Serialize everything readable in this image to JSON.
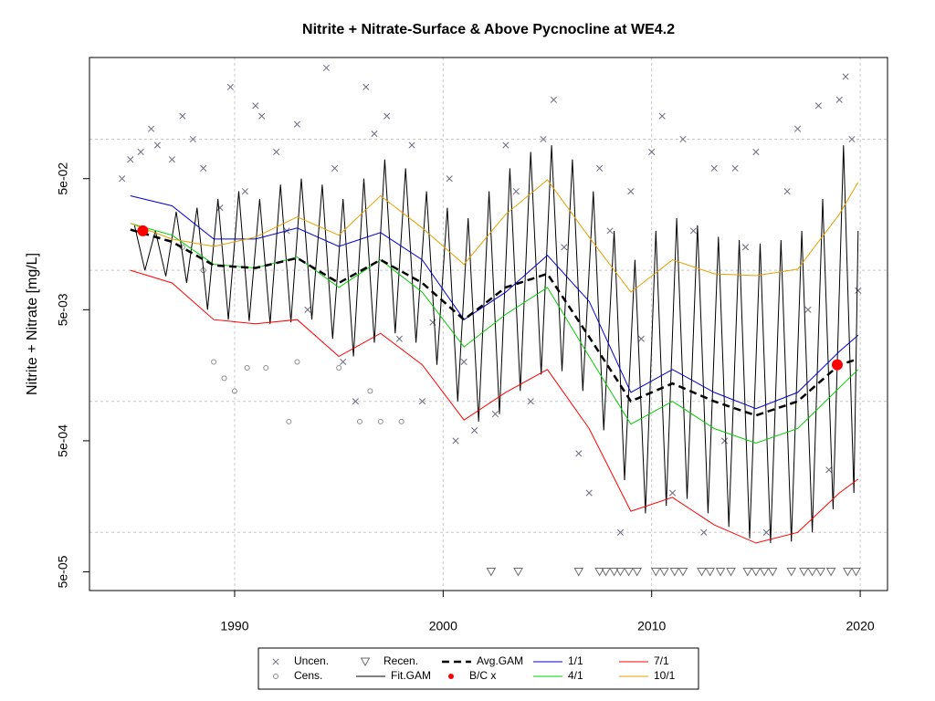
{
  "chart_data": {
    "type": "line",
    "title": "Nitrite + Nitrate-Surface & Above Pycnocline at WE4.2",
    "y_label": "Nitrite + Nitrate [mg/L]",
    "log_y": true,
    "grid": true,
    "xlim": [
      1983.04,
      2021.31
    ],
    "xticks": [
      1990,
      2000,
      2010,
      2020
    ],
    "ylim": [
      3.6e-05,
      0.42
    ],
    "yticks": [
      {
        "value": 5e-05,
        "label": "5e-05"
      },
      {
        "value": 0.0005,
        "label": "5e-04"
      },
      {
        "value": 0.005,
        "label": "5e-03"
      },
      {
        "value": 0.05,
        "label": "5e-02"
      }
    ],
    "ygrid": [
      0.0001,
      0.001,
      0.01,
      0.1
    ],
    "legend": "bottom",
    "series": [
      {
        "name": "Uncen.",
        "style": "x",
        "color": "#6b6b80",
        "x": [
          1984.6,
          1985,
          1985.5,
          1986,
          1986.3,
          1987,
          1987.5,
          1988,
          1988.5,
          1989.3,
          1989.8,
          1990.5,
          1991,
          1991.3,
          1992,
          1992.5,
          1993,
          1993.5,
          1994.4,
          1994.8,
          1995.2,
          1995.8,
          1996.3,
          1996.7,
          1997.3,
          1997.9,
          1998.5,
          1999,
          1999.5,
          2000.3,
          2000.6,
          2001,
          2001.5,
          2002.5,
          2003,
          2003.5,
          2004.2,
          2004.8,
          2005.3,
          2005.8,
          2006.5,
          2007,
          2007.5,
          2008,
          2008.5,
          2009,
          2009.5,
          2010,
          2010.5,
          2011,
          2011.5,
          2012,
          2012.5,
          2013,
          2013.5,
          2014,
          2014.5,
          2015,
          2015.5,
          2016.5,
          2017,
          2017.5,
          2018,
          2018.5,
          2019,
          2019.3,
          2019.6,
          2019.9
        ],
        "values": [
          0.05,
          0.07,
          0.08,
          0.12,
          0.09,
          0.07,
          0.15,
          0.1,
          0.06,
          0.03,
          0.25,
          0.04,
          0.18,
          0.15,
          0.08,
          0.02,
          0.13,
          0.005,
          0.35,
          0.06,
          0.002,
          0.001,
          0.25,
          0.11,
          0.15,
          0.003,
          0.09,
          0.001,
          0.004,
          0.05,
          0.0005,
          0.002,
          0.0006,
          0.0008,
          0.09,
          0.04,
          0.001,
          0.1,
          0.2,
          0.015,
          0.0004,
          0.0002,
          0.06,
          0.02,
          0.0001,
          0.04,
          0.003,
          0.08,
          0.15,
          0.0002,
          0.1,
          0.02,
          0.0001,
          0.06,
          0.0005,
          0.06,
          0.015,
          0.08,
          0.0001,
          0.04,
          0.12,
          0.005,
          0.18,
          0.0003,
          0.2,
          0.3,
          0.1,
          0.007
        ]
      },
      {
        "name": "Cens.",
        "style": "circle",
        "color": "#8c8c8c",
        "x": [
          1985.5,
          1987.5,
          1988.5,
          1989,
          1989.5,
          1990,
          1990.6,
          1991.5,
          1993,
          1995,
          1996.5,
          1997,
          1998,
          1996,
          1992.6
        ],
        "values": [
          0.02,
          0.015,
          0.01,
          0.002,
          0.0015,
          0.0012,
          0.0018,
          0.0018,
          0.002,
          0.0018,
          0.0012,
          0.0007,
          0.0007,
          0.0007,
          0.0007
        ]
      },
      {
        "name": "Recen.",
        "style": "triangle",
        "color": "#6b6b6b",
        "x": [
          2002.3,
          2003.6,
          2006.5,
          2007.5,
          2007.8,
          2008.2,
          2008.5,
          2008.9,
          2009.3,
          2010.2,
          2010.6,
          2011.1,
          2011.5,
          2012.4,
          2012.8,
          2013.3,
          2013.8,
          2014.6,
          2015.0,
          2015.4,
          2015.8,
          2016.7,
          2017.3,
          2017.7,
          2018.1,
          2018.6,
          2019.4,
          2019.8
        ],
        "values": [
          5e-05,
          5e-05,
          5e-05,
          5e-05,
          5e-05,
          5e-05,
          5e-05,
          5e-05,
          5e-05,
          5e-05,
          5e-05,
          5e-05,
          5e-05,
          5e-05,
          5e-05,
          5e-05,
          5e-05,
          5e-05,
          5e-05,
          5e-05,
          5e-05,
          5e-05,
          5e-05,
          5e-05,
          5e-05,
          5e-05,
          5e-05,
          5e-05
        ]
      },
      {
        "name": "Fit.GAM",
        "style": "line",
        "color": "#000000",
        "x": [
          1985.2,
          1985.7,
          1986.2,
          1986.7,
          1987.2,
          1987.7,
          1988.2,
          1988.7,
          1989.2,
          1989.7,
          1990.2,
          1990.7,
          1991.2,
          1991.7,
          1992.2,
          1992.7,
          1993.2,
          1993.7,
          1994.2,
          1994.7,
          1995.2,
          1995.7,
          1996.2,
          1996.7,
          1997.2,
          1997.7,
          1998.2,
          1998.7,
          1999.2,
          1999.7,
          2000.2,
          2000.7,
          2001.2,
          2001.7,
          2002.2,
          2002.7,
          2003.2,
          2003.7,
          2004.2,
          2004.7,
          2005.2,
          2005.7,
          2006.2,
          2006.7,
          2007.2,
          2007.7,
          2008.2,
          2008.7,
          2009.2,
          2009.7,
          2010.2,
          2010.7,
          2011.2,
          2011.7,
          2012.2,
          2012.7,
          2013.2,
          2013.7,
          2014.2,
          2014.7,
          2015.2,
          2015.7,
          2016.2,
          2016.7,
          2017.2,
          2017.7,
          2018.2,
          2018.7,
          2019.2,
          2019.7,
          2019.9
        ],
        "values": [
          0.022,
          0.01,
          0.02,
          0.009,
          0.028,
          0.008,
          0.03,
          0.005,
          0.035,
          0.0042,
          0.04,
          0.0041,
          0.035,
          0.0039,
          0.045,
          0.004,
          0.05,
          0.0042,
          0.045,
          0.003,
          0.035,
          0.0022,
          0.05,
          0.0028,
          0.07,
          0.0033,
          0.06,
          0.0028,
          0.04,
          0.0019,
          0.03,
          0.001,
          0.025,
          0.0007,
          0.04,
          0.0008,
          0.06,
          0.0012,
          0.08,
          0.0016,
          0.09,
          0.0017,
          0.07,
          0.0012,
          0.04,
          0.0006,
          0.02,
          0.00025,
          0.012,
          0.00014,
          0.02,
          0.00016,
          0.025,
          0.00018,
          0.022,
          0.00014,
          0.018,
          0.00011,
          0.017,
          9e-05,
          0.016,
          8.3e-05,
          0.017,
          8.5e-05,
          0.02,
          0.0001,
          0.035,
          0.00015,
          0.09,
          0.0002,
          0.02
        ]
      },
      {
        "name": "Avg.GAM",
        "style": "dashed",
        "color": "#000000",
        "x": [
          1985,
          1987,
          1989,
          1991,
          1993,
          1995,
          1997,
          1999,
          2001,
          2003,
          2005,
          2007,
          2009,
          2011,
          2013,
          2015,
          2017,
          2019,
          2019.9
        ],
        "values": [
          0.0204,
          0.0165,
          0.0109,
          0.0104,
          0.0124,
          0.008,
          0.012,
          0.008,
          0.0042,
          0.0074,
          0.0094,
          0.0031,
          0.001,
          0.00137,
          0.001,
          0.00078,
          0.001,
          0.0019,
          0.0021
        ]
      },
      {
        "name": "B/C x",
        "style": "dot",
        "color": "#ff0000",
        "x": [
          1985.6,
          2018.9
        ],
        "values": [
          0.02,
          0.0019
        ]
      },
      {
        "name": "1/1",
        "style": "line",
        "color": "#0000cd",
        "x": [
          1985,
          1987,
          1989,
          1991,
          1993,
          1995,
          1997,
          1999,
          2001,
          2003,
          2005,
          2007,
          2009,
          2011,
          2013,
          2015,
          2017,
          2019,
          2019.9
        ],
        "values": [
          0.037,
          0.031,
          0.0173,
          0.0173,
          0.021,
          0.0152,
          0.0194,
          0.012,
          0.0042,
          0.0068,
          0.013,
          0.0058,
          0.00117,
          0.00175,
          0.00117,
          0.00088,
          0.00117,
          0.0024,
          0.0032
        ]
      },
      {
        "name": "4/1",
        "style": "line",
        "color": "#00cc00",
        "x": [
          1985,
          1987,
          1989,
          1991,
          1993,
          1995,
          1997,
          1999,
          2001,
          2003,
          2005,
          2007,
          2009,
          2011,
          2013,
          2015,
          2017,
          2019,
          2019.9
        ],
        "values": [
          0.0228,
          0.0185,
          0.0111,
          0.0104,
          0.0126,
          0.0074,
          0.012,
          0.0068,
          0.0026,
          0.0046,
          0.0074,
          0.0022,
          0.00067,
          0.001,
          0.00062,
          0.00048,
          0.00062,
          0.00127,
          0.00175
        ]
      },
      {
        "name": "7/1",
        "style": "line",
        "color": "#ff0000",
        "x": [
          1985,
          1987,
          1989,
          1991,
          1993,
          1995,
          1997,
          1999,
          2001,
          2003,
          2005,
          2007,
          2009,
          2011,
          2013,
          2015,
          2017,
          2019,
          2019.9
        ],
        "values": [
          0.01,
          0.008,
          0.0042,
          0.0039,
          0.0042,
          0.0022,
          0.0033,
          0.0019,
          0.00072,
          0.00117,
          0.00175,
          0.00062,
          0.000145,
          0.000185,
          0.000114,
          8.3e-05,
          0.0001,
          0.0002,
          0.000255
        ]
      },
      {
        "name": "10/1",
        "style": "line",
        "color": "#e8a000",
        "x": [
          1985,
          1987,
          1989,
          1991,
          1993,
          1995,
          1997,
          1999,
          2001,
          2003,
          2005,
          2007,
          2009,
          2011,
          2013,
          2015,
          2017,
          2019,
          2019.9
        ],
        "values": [
          0.0228,
          0.0173,
          0.0152,
          0.0179,
          0.0255,
          0.0185,
          0.037,
          0.021,
          0.0111,
          0.0267,
          0.049,
          0.0179,
          0.0068,
          0.012,
          0.0094,
          0.0091,
          0.0102,
          0.0267,
          0.047
        ]
      }
    ]
  }
}
